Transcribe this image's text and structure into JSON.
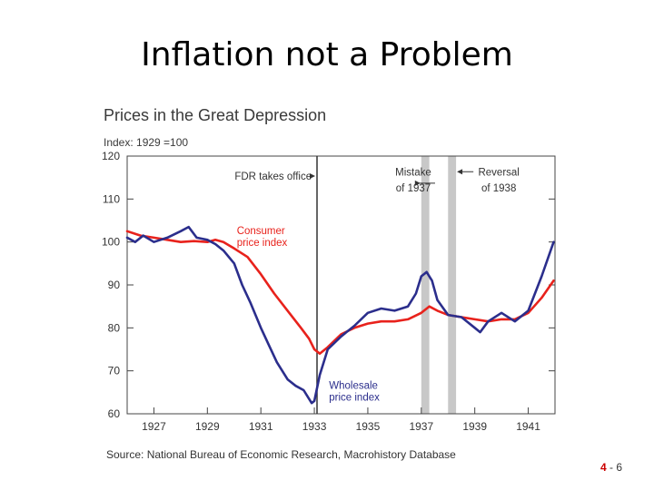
{
  "slide": {
    "title": "Inflation not a Problem",
    "source": "Source: National Bureau of Economic Research, Macrohistory Database",
    "page": {
      "chapter": "4",
      "separator": " - ",
      "number": "6"
    }
  },
  "colors": {
    "cpi": "#e8221c",
    "wpi": "#2b2e8c",
    "shade": "#c8c8c8",
    "axis": "#444444",
    "text": "#333333"
  },
  "chart_data": {
    "type": "line",
    "title": "Prices in the Great Depression",
    "ylabel": "Index: 1929 =100",
    "xlim": [
      1926.0,
      1942.0
    ],
    "ylim": [
      60,
      120
    ],
    "yticks": [
      60,
      70,
      80,
      90,
      100,
      110,
      120
    ],
    "xticks": [
      1927,
      1929,
      1931,
      1933,
      1935,
      1937,
      1939,
      1941
    ],
    "xtick_labels": [
      "1927",
      "1929",
      "1931",
      "1933",
      "1935",
      "1937",
      "1939",
      "1941"
    ],
    "vline": {
      "x": 1933.1
    },
    "shaded_periods": [
      [
        1937.0,
        1937.3
      ],
      [
        1938.0,
        1938.3
      ]
    ],
    "annotations": [
      {
        "id": "fdr",
        "text": "FDR takes office",
        "x": 1932.9,
        "y": 114.5
      },
      {
        "id": "mistake-1",
        "text": "Mistake",
        "x": 1936.7,
        "y": 115.5
      },
      {
        "id": "mistake-2",
        "text": "of 1937",
        "x": 1936.7,
        "y": 111.8
      },
      {
        "id": "reversal-1",
        "text": "Reversal",
        "x": 1939.9,
        "y": 115.5
      },
      {
        "id": "reversal-2",
        "text": "of 1938",
        "x": 1939.9,
        "y": 111.8
      }
    ],
    "series": [
      {
        "name": "Consumer price index",
        "label_lines": [
          "Consumer",
          "price index"
        ],
        "label_pos": {
          "x": 1930.1,
          "y": 101.8
        },
        "x": [
          1926.0,
          1926.5,
          1927.0,
          1927.5,
          1928.0,
          1928.5,
          1929.0,
          1929.3,
          1929.6,
          1930.0,
          1930.5,
          1931.0,
          1931.5,
          1932.0,
          1932.5,
          1932.8,
          1933.0,
          1933.2,
          1933.5,
          1934.0,
          1934.5,
          1935.0,
          1935.5,
          1936.0,
          1936.5,
          1937.0,
          1937.3,
          1937.6,
          1938.0,
          1938.5,
          1939.0,
          1939.5,
          1940.0,
          1940.5,
          1941.0,
          1941.5,
          1941.95
        ],
        "values": [
          102.5,
          101.5,
          101.0,
          100.5,
          100.0,
          100.2,
          100.0,
          100.5,
          100.0,
          98.5,
          96.5,
          92.5,
          88.0,
          84.0,
          80.0,
          77.5,
          75.0,
          74.0,
          75.5,
          78.5,
          80.0,
          81.0,
          81.5,
          81.5,
          82.0,
          83.5,
          85.0,
          84.0,
          83.0,
          82.5,
          82.0,
          81.5,
          82.0,
          82.0,
          83.5,
          87.0,
          91.0
        ]
      },
      {
        "name": "Wholesale price index",
        "label_lines": [
          "Wholesale",
          "price index"
        ],
        "label_pos": {
          "x": 1933.55,
          "y": 65.8
        },
        "x": [
          1926.0,
          1926.3,
          1926.6,
          1927.0,
          1927.5,
          1928.0,
          1928.3,
          1928.6,
          1929.0,
          1929.3,
          1929.6,
          1930.0,
          1930.3,
          1930.6,
          1931.0,
          1931.3,
          1931.6,
          1932.0,
          1932.3,
          1932.6,
          1932.9,
          1933.0,
          1933.2,
          1933.5,
          1934.0,
          1934.5,
          1935.0,
          1935.5,
          1936.0,
          1936.5,
          1936.8,
          1937.0,
          1937.2,
          1937.4,
          1937.6,
          1938.0,
          1938.5,
          1939.0,
          1939.2,
          1939.5,
          1940.0,
          1940.5,
          1941.0,
          1941.5,
          1941.95
        ],
        "values": [
          101.0,
          100.0,
          101.5,
          100.0,
          101.0,
          102.5,
          103.5,
          101.0,
          100.5,
          99.5,
          98.0,
          95.0,
          90.0,
          86.0,
          80.0,
          76.0,
          72.0,
          68.0,
          66.5,
          65.5,
          62.5,
          63.0,
          69.0,
          75.0,
          78.0,
          80.5,
          83.5,
          84.5,
          84.0,
          85.0,
          88.0,
          92.0,
          93.0,
          91.0,
          86.5,
          83.0,
          82.5,
          80.0,
          79.0,
          81.5,
          83.5,
          81.5,
          84.0,
          92.0,
          100.0
        ]
      }
    ]
  }
}
